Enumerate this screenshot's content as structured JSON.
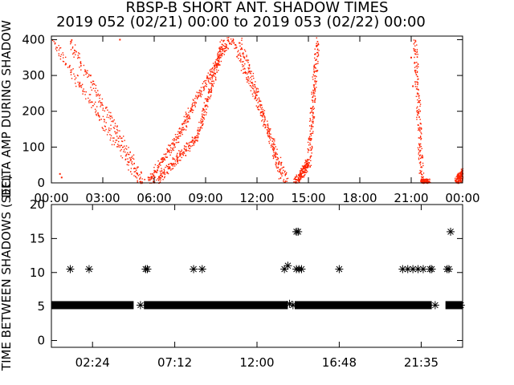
{
  "title_line1": "RBSP-B SHORT ANT. SHADOW TIMES",
  "title_line2": "2019 052 (02/21) 00:00 to 2019 053 (02/22) 00:00",
  "colors": {
    "red": "#ff2200",
    "black": "#000000",
    "background": "#ffffff"
  },
  "chart_data": [
    {
      "type": "scatter",
      "ylabel": "DELTA AMP DURING SHADOW",
      "xlim": [
        "00:00",
        "24:00"
      ],
      "ylim": [
        0,
        410
      ],
      "x_tick_labels": [
        "00:00",
        "03:00",
        "06:00",
        "09:00",
        "12:00",
        "15:00",
        "18:00",
        "21:00",
        "00:00"
      ],
      "y_tick_labels": [
        "0",
        "100",
        "200",
        "300",
        "400"
      ],
      "y_ticks": [
        0,
        100,
        200,
        300,
        400
      ],
      "series": [
        {
          "color": "#ff2200",
          "segments": [
            {
              "x_hours": [
                0.0,
                5.2
              ],
              "y": [
                400,
                0
              ]
            },
            {
              "x_hours": [
                1.0,
                5.4
              ],
              "y": [
                400,
                0
              ]
            },
            {
              "x_hours": [
                5.6,
                8.0
              ],
              "y": [
                0,
                180
              ]
            },
            {
              "x_hours": [
                6.0,
                8.5
              ],
              "y": [
                0,
                130
              ]
            },
            {
              "x_hours": [
                7.8,
                10.5
              ],
              "y": [
                180,
                410
              ]
            },
            {
              "x_hours": [
                8.5,
                10.0
              ],
              "y": [
                130,
                400
              ]
            },
            {
              "x_hours": [
                10.5,
                13.8
              ],
              "y": [
                410,
                0
              ]
            },
            {
              "x_hours": [
                11.0,
                13.5
              ],
              "y": [
                400,
                0
              ]
            },
            {
              "x_hours": [
                14.2,
                15.0
              ],
              "y": [
                0,
                60
              ]
            },
            {
              "x_hours": [
                15.0,
                15.5
              ],
              "y": [
                60,
                400
              ]
            },
            {
              "x_hours": [
                21.2,
                21.6
              ],
              "y": [
                400,
                0
              ]
            },
            {
              "x_hours": [
                21.6,
                22.0
              ],
              "y": [
                0,
                0
              ]
            },
            {
              "x_hours": [
                23.6,
                24.0
              ],
              "y": [
                0,
                30
              ]
            }
          ],
          "isolated": [
            {
              "x_hours": 0.5,
              "y": 25
            },
            {
              "x_hours": 0.6,
              "y": 15
            },
            {
              "x_hours": 4.0,
              "y": 400
            },
            {
              "x_hours": 10.2,
              "y": 380
            },
            {
              "x_hours": 21.0,
              "y": 350
            },
            {
              "x_hours": 21.1,
              "y": 270
            }
          ]
        }
      ]
    },
    {
      "type": "scatter",
      "ylabel": "TIME BETWEEN SHADOWS (SEC)",
      "xlim": [
        "00:00",
        "24:00"
      ],
      "ylim": [
        -1,
        20
      ],
      "x_tick_labels": [
        "02:24",
        "07:12",
        "12:00",
        "16:48",
        "21:35"
      ],
      "x_tick_hours": [
        2.4,
        7.2,
        12.0,
        16.8,
        21.583
      ],
      "y_tick_labels": [
        "0",
        "5",
        "10",
        "15",
        "20"
      ],
      "y_ticks": [
        0,
        5,
        10,
        15,
        20
      ],
      "series": [
        {
          "color": "#000000",
          "marker": "asterisk",
          "baseline": {
            "y": 5.2,
            "x_ranges_hours": [
              [
                0.0,
                4.8
              ],
              [
                5.4,
                13.8
              ],
              [
                14.2,
                22.2
              ],
              [
                23.0,
                24.0
              ]
            ]
          },
          "points": [
            {
              "x_hours": 1.1,
              "y": 10.5
            },
            {
              "x_hours": 2.2,
              "y": 10.5
            },
            {
              "x_hours": 5.2,
              "y": 5.2
            },
            {
              "x_hours": 5.5,
              "y": 10.5
            },
            {
              "x_hours": 5.6,
              "y": 10.5
            },
            {
              "x_hours": 8.3,
              "y": 10.5
            },
            {
              "x_hours": 8.8,
              "y": 10.5
            },
            {
              "x_hours": 13.6,
              "y": 10.5
            },
            {
              "x_hours": 13.8,
              "y": 11.0
            },
            {
              "x_hours": 13.9,
              "y": 5.4
            },
            {
              "x_hours": 14.1,
              "y": 5.2
            },
            {
              "x_hours": 14.3,
              "y": 16.0
            },
            {
              "x_hours": 14.4,
              "y": 16.0
            },
            {
              "x_hours": 14.3,
              "y": 10.5
            },
            {
              "x_hours": 14.45,
              "y": 10.5
            },
            {
              "x_hours": 14.6,
              "y": 10.5
            },
            {
              "x_hours": 16.8,
              "y": 10.5
            },
            {
              "x_hours": 20.5,
              "y": 10.5
            },
            {
              "x_hours": 20.8,
              "y": 10.5
            },
            {
              "x_hours": 21.1,
              "y": 10.5
            },
            {
              "x_hours": 21.4,
              "y": 10.5
            },
            {
              "x_hours": 21.7,
              "y": 10.5
            },
            {
              "x_hours": 22.1,
              "y": 10.5
            },
            {
              "x_hours": 22.2,
              "y": 10.5
            },
            {
              "x_hours": 22.4,
              "y": 5.2
            },
            {
              "x_hours": 23.1,
              "y": 10.5
            },
            {
              "x_hours": 23.2,
              "y": 10.5
            },
            {
              "x_hours": 23.3,
              "y": 16.0
            },
            {
              "x_hours": 23.9,
              "y": 5.2
            }
          ]
        }
      ]
    }
  ]
}
